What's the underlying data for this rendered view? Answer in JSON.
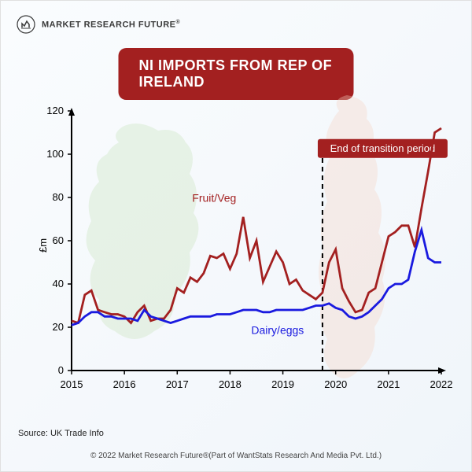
{
  "header": {
    "brand": "MARKET RESEARCH FUTURE",
    "reg": "®"
  },
  "title": "NI IMPORTS FROM REP OF IRELAND",
  "chart": {
    "type": "line",
    "y_title": "£m",
    "xlim": [
      2015,
      2022
    ],
    "ylim": [
      0,
      120
    ],
    "ytick_step": 20,
    "yticks": [
      0,
      20,
      40,
      60,
      80,
      100,
      120
    ],
    "xticks": [
      2015,
      2016,
      2017,
      2018,
      2019,
      2020,
      2021,
      2022
    ],
    "background_color": "#ffffff",
    "axis_color": "#000000",
    "tick_fontsize": 13,
    "series": [
      {
        "id": "fruit_veg",
        "label": "Fruit/Veg",
        "color": "#a32020",
        "line_width": 2.8,
        "label_x": 2017.7,
        "label_y": 78,
        "data": [
          [
            2015.0,
            23
          ],
          [
            2015.125,
            22
          ],
          [
            2015.25,
            35
          ],
          [
            2015.375,
            37
          ],
          [
            2015.5,
            28
          ],
          [
            2015.625,
            27
          ],
          [
            2015.75,
            26
          ],
          [
            2015.875,
            26
          ],
          [
            2016.0,
            25
          ],
          [
            2016.125,
            22
          ],
          [
            2016.25,
            27
          ],
          [
            2016.375,
            30
          ],
          [
            2016.5,
            23
          ],
          [
            2016.625,
            24
          ],
          [
            2016.75,
            24
          ],
          [
            2016.875,
            28
          ],
          [
            2017.0,
            38
          ],
          [
            2017.125,
            36
          ],
          [
            2017.25,
            43
          ],
          [
            2017.375,
            41
          ],
          [
            2017.5,
            45
          ],
          [
            2017.625,
            53
          ],
          [
            2017.75,
            52
          ],
          [
            2017.875,
            54
          ],
          [
            2018.0,
            47
          ],
          [
            2018.125,
            54
          ],
          [
            2018.25,
            71
          ],
          [
            2018.375,
            52
          ],
          [
            2018.5,
            60
          ],
          [
            2018.625,
            41
          ],
          [
            2018.75,
            48
          ],
          [
            2018.875,
            55
          ],
          [
            2019.0,
            50
          ],
          [
            2019.125,
            40
          ],
          [
            2019.25,
            42
          ],
          [
            2019.375,
            37
          ],
          [
            2019.5,
            35
          ],
          [
            2019.625,
            33
          ],
          [
            2019.75,
            36
          ],
          [
            2019.875,
            50
          ],
          [
            2020.0,
            56
          ],
          [
            2020.125,
            38
          ],
          [
            2020.25,
            32
          ],
          [
            2020.375,
            27
          ],
          [
            2020.5,
            28
          ],
          [
            2020.625,
            36
          ],
          [
            2020.75,
            38
          ],
          [
            2020.875,
            50
          ],
          [
            2021.0,
            62
          ],
          [
            2021.125,
            64
          ],
          [
            2021.25,
            67
          ],
          [
            2021.375,
            67
          ],
          [
            2021.5,
            57
          ],
          [
            2021.625,
            75
          ],
          [
            2021.75,
            92
          ],
          [
            2021.875,
            110
          ],
          [
            2022.0,
            112
          ]
        ]
      },
      {
        "id": "dairy_eggs",
        "label": "Dairy/eggs",
        "color": "#1a1adf",
        "line_width": 2.8,
        "label_x": 2018.9,
        "label_y": 17,
        "data": [
          [
            2015.0,
            21
          ],
          [
            2015.125,
            22
          ],
          [
            2015.25,
            25
          ],
          [
            2015.375,
            27
          ],
          [
            2015.5,
            27
          ],
          [
            2015.625,
            25
          ],
          [
            2015.75,
            25
          ],
          [
            2015.875,
            24
          ],
          [
            2016.0,
            24
          ],
          [
            2016.125,
            24
          ],
          [
            2016.25,
            23
          ],
          [
            2016.375,
            28
          ],
          [
            2016.5,
            25
          ],
          [
            2016.625,
            24
          ],
          [
            2016.75,
            23
          ],
          [
            2016.875,
            22
          ],
          [
            2017.0,
            23
          ],
          [
            2017.125,
            24
          ],
          [
            2017.25,
            25
          ],
          [
            2017.375,
            25
          ],
          [
            2017.5,
            25
          ],
          [
            2017.625,
            25
          ],
          [
            2017.75,
            26
          ],
          [
            2017.875,
            26
          ],
          [
            2018.0,
            26
          ],
          [
            2018.125,
            27
          ],
          [
            2018.25,
            28
          ],
          [
            2018.375,
            28
          ],
          [
            2018.5,
            28
          ],
          [
            2018.625,
            27
          ],
          [
            2018.75,
            27
          ],
          [
            2018.875,
            28
          ],
          [
            2019.0,
            28
          ],
          [
            2019.125,
            28
          ],
          [
            2019.25,
            28
          ],
          [
            2019.375,
            28
          ],
          [
            2019.5,
            29
          ],
          [
            2019.625,
            30
          ],
          [
            2019.75,
            30
          ],
          [
            2019.875,
            31
          ],
          [
            2020.0,
            29
          ],
          [
            2020.125,
            28
          ],
          [
            2020.25,
            25
          ],
          [
            2020.375,
            24
          ],
          [
            2020.5,
            25
          ],
          [
            2020.625,
            27
          ],
          [
            2020.75,
            30
          ],
          [
            2020.875,
            33
          ],
          [
            2021.0,
            38
          ],
          [
            2021.125,
            40
          ],
          [
            2021.25,
            40
          ],
          [
            2021.375,
            42
          ],
          [
            2021.5,
            55
          ],
          [
            2021.625,
            65
          ],
          [
            2021.75,
            52
          ],
          [
            2021.875,
            50
          ],
          [
            2022.0,
            50
          ]
        ]
      }
    ],
    "annotation": {
      "label": "End of transition period",
      "x": 2019.75,
      "box_color": "#a32020",
      "text_color": "#ffffff"
    }
  },
  "map_colors": {
    "ireland": "#c9e4bd",
    "britain": "#f5d4c4"
  },
  "source": "Source: UK Trade Info",
  "copyright": "© 2022 Market Research Future®(Part of WantStats Research And Media Pvt. Ltd.)"
}
